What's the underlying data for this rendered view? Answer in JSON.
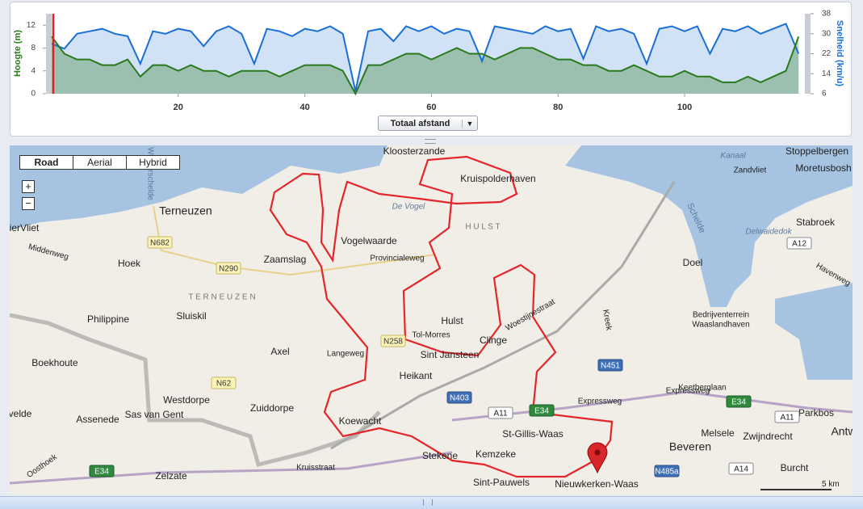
{
  "chart_data": {
    "type": "line",
    "y_label": "Hoogte (m)",
    "y2_label": "Snelheid (km/u)",
    "x": [
      0,
      2,
      4,
      6,
      8,
      10,
      12,
      14,
      16,
      18,
      20,
      22,
      24,
      26,
      28,
      30,
      32,
      34,
      36,
      38,
      40,
      42,
      44,
      46,
      48,
      50,
      52,
      54,
      56,
      58,
      60,
      62,
      64,
      66,
      68,
      70,
      72,
      74,
      76,
      78,
      80,
      82,
      84,
      86,
      88,
      90,
      92,
      94,
      96,
      98,
      100,
      102,
      104,
      106,
      108,
      110,
      112,
      114,
      116,
      118
    ],
    "series": [
      {
        "name": "Snelheid",
        "axis": "y2",
        "color": "#1a6fd6",
        "values": [
          26,
          24,
          30,
          31,
          32,
          30,
          29,
          18,
          31,
          30,
          32,
          31,
          25,
          31,
          33,
          30,
          18,
          32,
          31,
          29,
          32,
          31,
          33,
          30,
          7,
          31,
          32,
          27,
          33,
          31,
          33,
          30,
          32,
          31,
          19,
          33,
          32,
          31,
          30,
          33,
          31,
          32,
          20,
          33,
          31,
          32,
          30,
          18,
          32,
          33,
          31,
          33,
          22,
          32,
          31,
          33,
          30,
          32,
          34,
          22
        ]
      },
      {
        "name": "Hoogte",
        "axis": "y",
        "color": "#2a7a1c",
        "values": [
          10,
          7,
          6,
          6,
          5,
          5,
          6,
          3,
          5,
          5,
          4,
          5,
          4,
          4,
          3,
          4,
          4,
          4,
          3,
          4,
          5,
          5,
          5,
          4,
          0,
          5,
          5,
          6,
          7,
          7,
          6,
          7,
          8,
          7,
          7,
          6,
          7,
          8,
          8,
          7,
          6,
          6,
          5,
          5,
          4,
          4,
          5,
          4,
          3,
          3,
          4,
          3,
          3,
          2,
          2,
          3,
          2,
          3,
          4,
          10
        ]
      }
    ],
    "xlim": [
      0,
      119
    ],
    "xticks": [
      20,
      40,
      60,
      80,
      100
    ],
    "ylim": [
      0,
      14
    ],
    "yticks": [
      0,
      4,
      8,
      12
    ],
    "y2lim": [
      6,
      38
    ],
    "y2ticks": [
      6,
      14,
      22,
      30,
      38
    ]
  },
  "controls": {
    "x_axis_select": "Totaal afstand",
    "map_types": [
      "Road",
      "Aerial",
      "Hybrid"
    ],
    "zoom_in": "+",
    "zoom_out": "−",
    "scale": "5 km"
  },
  "map": {
    "labels": [
      "Kloosterzande",
      "Kruispolderhaven",
      "De Vogel",
      "H U L S T",
      "Vogelwaarde",
      "Zaamslag",
      "Provincialeweg",
      "Terneuzen",
      "Hoek",
      "Philippine",
      "Sluiskil",
      "T E R N E U Z E N",
      "Axel",
      "Langeweg",
      "Hulst",
      "Tol-Morres",
      "Clinge",
      "Woestijnestraat",
      "Sint Jansteen",
      "Heikant",
      "Boekhoute",
      "Westdorpe",
      "Zuiddorpe",
      "Sas van Gent",
      "Assenede",
      "Koewacht",
      "St-Gillis-Waas",
      "Kemzeke",
      "Stekene",
      "Sint-Pauwels",
      "Nieuwkerken-Waas",
      "Beveren",
      "Melsele",
      "Zwijndrecht",
      "Burcht",
      "Antw",
      "Doel",
      "Stabroek",
      "Zandvliet",
      "Stoppelbergen",
      "Moretusbosh",
      "Kanaal",
      "Delwaidedok",
      "Bedrijventerrein",
      "Waaslandhaven",
      "Expressweg",
      "Expressweg",
      "Keetberglaan",
      "Kreek",
      "Parkbos",
      "Havenweg",
      "Schelde",
      "Middenweg",
      "Westerschelde",
      "ierVliet",
      "velde",
      "Oosthoek",
      "Zelzate",
      "Kruisstraat"
    ],
    "shields": [
      "N682",
      "N290",
      "N258",
      "N62",
      "N403",
      "A11",
      "E34",
      "N451",
      "E34",
      "A12",
      "A11",
      "A14",
      "N485a",
      "E34"
    ]
  }
}
